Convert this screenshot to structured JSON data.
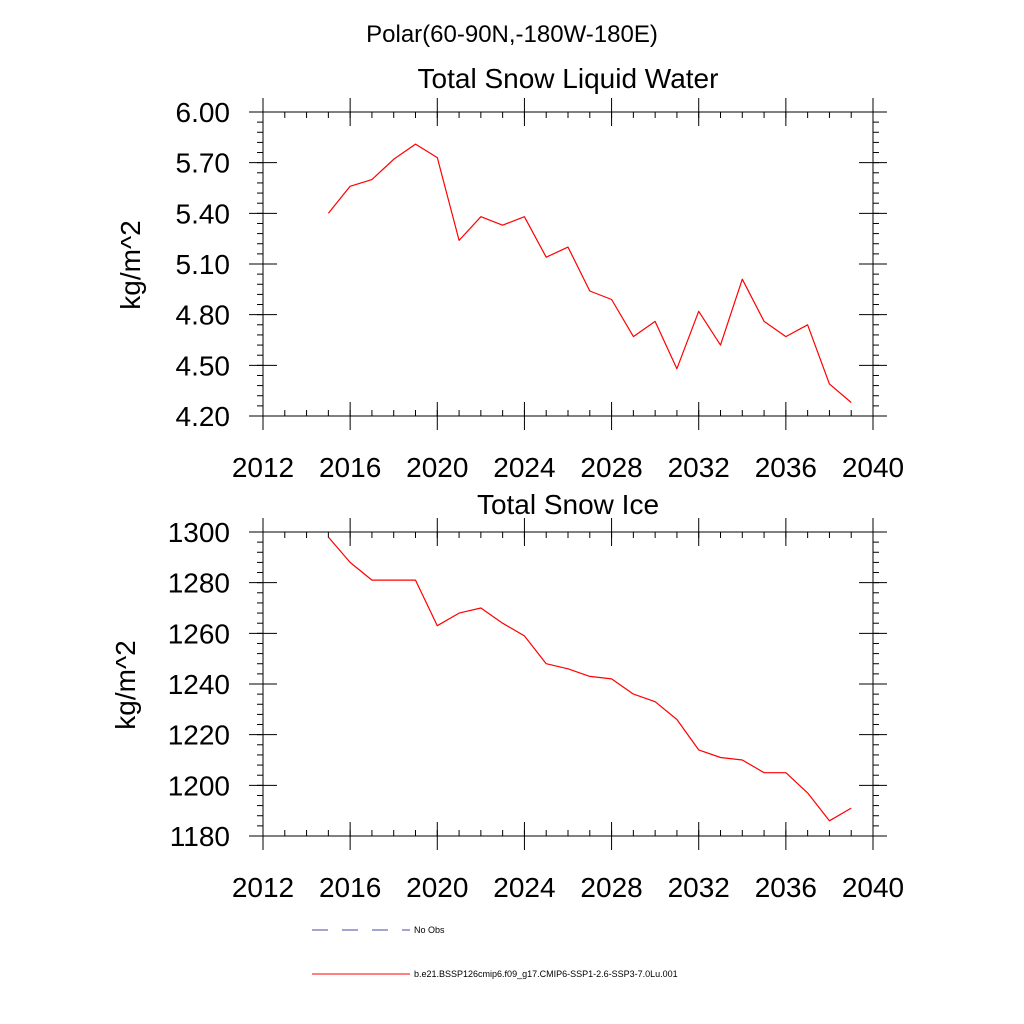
{
  "figure": {
    "suptitle": "Polar(60-90N,-180W-180E)"
  },
  "chart_data": [
    {
      "type": "line",
      "title": "Total Snow Liquid Water",
      "xlabel": "",
      "ylabel": "kg/m^2",
      "xlim": [
        2012,
        2040
      ],
      "ylim": [
        4.2,
        6.0
      ],
      "xticks": [
        2012,
        2016,
        2020,
        2024,
        2028,
        2032,
        2036,
        2040
      ],
      "xtick_labels": [
        "2012",
        "2016",
        "2020",
        "2024",
        "2028",
        "2032",
        "2036",
        "2040"
      ],
      "yticks": [
        4.2,
        4.5,
        4.8,
        5.1,
        5.4,
        5.7,
        6.0
      ],
      "ytick_labels": [
        "4.20",
        "4.50",
        "4.80",
        "5.10",
        "5.40",
        "5.70",
        "6.00"
      ],
      "x": [
        2015,
        2016,
        2017,
        2018,
        2019,
        2020,
        2021,
        2022,
        2023,
        2024,
        2025,
        2026,
        2027,
        2028,
        2029,
        2030,
        2031,
        2032,
        2033,
        2034,
        2035,
        2036,
        2037,
        2038,
        2039
      ],
      "series": [
        {
          "name": "b.e21.BSSP126cmip6.f09_g17.CMIP6-SSP1-2.6-SSP3-7.0Lu.001",
          "color": "#ff0000",
          "values": [
            5.4,
            5.56,
            5.6,
            5.72,
            5.81,
            5.73,
            5.24,
            5.38,
            5.33,
            5.38,
            5.14,
            5.2,
            4.94,
            4.89,
            4.67,
            4.76,
            4.48,
            4.82,
            4.62,
            5.01,
            4.76,
            4.67,
            4.74,
            4.39,
            4.28
          ]
        }
      ]
    },
    {
      "type": "line",
      "title": "Total Snow Ice",
      "xlabel": "",
      "ylabel": "kg/m^2",
      "xlim": [
        2012,
        2040
      ],
      "ylim": [
        1180,
        1300
      ],
      "xticks": [
        2012,
        2016,
        2020,
        2024,
        2028,
        2032,
        2036,
        2040
      ],
      "xtick_labels": [
        "2012",
        "2016",
        "2020",
        "2024",
        "2028",
        "2032",
        "2036",
        "2040"
      ],
      "yticks": [
        1180,
        1200,
        1220,
        1240,
        1260,
        1280,
        1300
      ],
      "ytick_labels": [
        "1180",
        "1200",
        "1220",
        "1240",
        "1260",
        "1280",
        "1300"
      ],
      "x": [
        2015,
        2016,
        2017,
        2018,
        2019,
        2020,
        2021,
        2022,
        2023,
        2024,
        2025,
        2026,
        2027,
        2028,
        2029,
        2030,
        2031,
        2032,
        2033,
        2034,
        2035,
        2036,
        2037,
        2038,
        2039
      ],
      "series": [
        {
          "name": "b.e21.BSSP126cmip6.f09_g17.CMIP6-SSP1-2.6-SSP3-7.0Lu.001",
          "color": "#ff0000",
          "values": [
            1298,
            1288,
            1281,
            1281,
            1281,
            1263,
            1268,
            1270,
            1264,
            1259,
            1248,
            1246,
            1243,
            1242,
            1236,
            1233,
            1226,
            1214,
            1211,
            1210,
            1205,
            1205,
            1197,
            1186,
            1191
          ]
        }
      ]
    }
  ],
  "legend": {
    "placement": "bottom",
    "entries": [
      {
        "label": "No Obs",
        "color": "#4a4aa0",
        "style": "dashed"
      },
      {
        "label": "b.e21.BSSP126cmip6.f09_g17.CMIP6-SSP1-2.6-SSP3-7.0Lu.001",
        "color": "#ff0000",
        "style": "solid"
      }
    ]
  }
}
